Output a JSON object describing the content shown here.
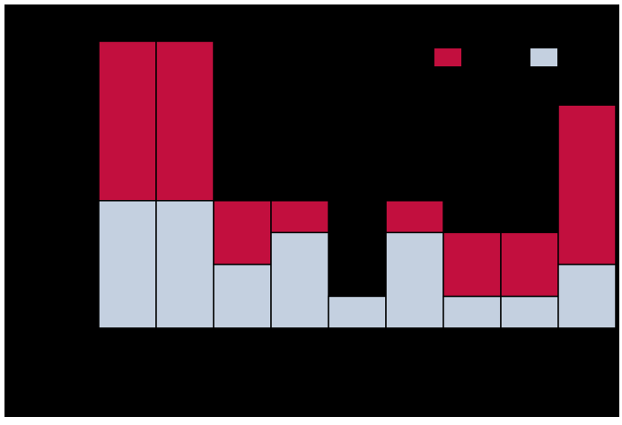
{
  "chart_data": {
    "type": "bar",
    "stacked": true,
    "categories": [
      "",
      "",
      "",
      "",
      "",
      "",
      "",
      "",
      ""
    ],
    "series": [
      {
        "color": "#c4d0e0",
        "values": [
          4,
          4,
          2,
          3,
          1,
          3,
          1,
          1,
          2
        ]
      },
      {
        "color": "#c20f3e",
        "values": [
          5,
          5,
          2,
          1,
          0,
          1,
          2,
          2,
          5
        ]
      }
    ],
    "ylim": [
      0,
      9
    ],
    "legend": "top-right",
    "grid": false,
    "colors": {
      "background": "#000000",
      "bar_outline": "#000000"
    }
  }
}
